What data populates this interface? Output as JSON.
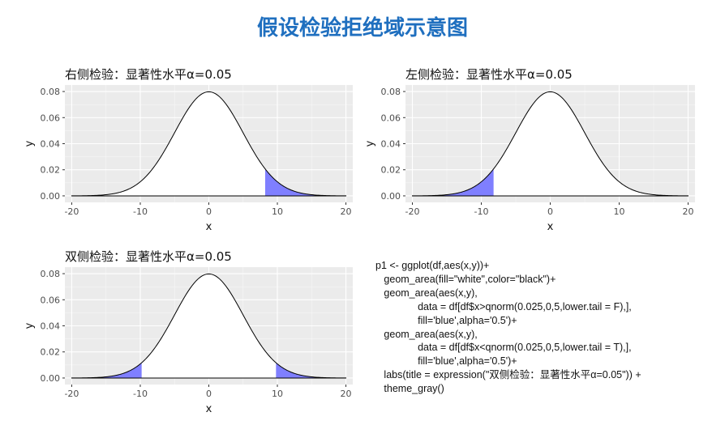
{
  "page": {
    "title": "假设检验拒绝域示意图"
  },
  "chart_data": [
    {
      "type": "area",
      "title": "右侧检验：显著性水平α=0.05",
      "xlabel": "x",
      "ylabel": "y",
      "xlim": [
        -21,
        21
      ],
      "ylim": [
        -0.005,
        0.085
      ],
      "x_ticks": [
        -20,
        -10,
        0,
        10,
        20
      ],
      "y_ticks": [
        0.0,
        0.02,
        0.04,
        0.06,
        0.08
      ],
      "y_tick_labels": [
        "0.00",
        "0.02",
        "0.04",
        "0.06",
        "0.08"
      ],
      "x_tick_labels": [
        "-20",
        "-10",
        "0",
        "10",
        "20"
      ],
      "curve": {
        "distribution": "normal",
        "mean": 0,
        "sd": 5,
        "x_range": [
          -20,
          20
        ],
        "fill": "white",
        "line": "black"
      },
      "shaded": [
        {
          "from": 8.22,
          "to": 20,
          "fill": "blue",
          "alpha": 0.5
        }
      ],
      "grid": true
    },
    {
      "type": "area",
      "title": "左侧检验：显著性水平α=0.05",
      "xlabel": "x",
      "ylabel": "y",
      "xlim": [
        -21,
        21
      ],
      "ylim": [
        -0.005,
        0.085
      ],
      "x_ticks": [
        -20,
        -10,
        0,
        10,
        20
      ],
      "y_ticks": [
        0.0,
        0.02,
        0.04,
        0.06,
        0.08
      ],
      "y_tick_labels": [
        "0.00",
        "0.02",
        "0.04",
        "0.06",
        "0.08"
      ],
      "x_tick_labels": [
        "-20",
        "-10",
        "0",
        "10",
        "20"
      ],
      "curve": {
        "distribution": "normal",
        "mean": 0,
        "sd": 5,
        "x_range": [
          -20,
          20
        ],
        "fill": "white",
        "line": "black"
      },
      "shaded": [
        {
          "from": -20,
          "to": -8.22,
          "fill": "blue",
          "alpha": 0.5
        }
      ],
      "grid": true
    },
    {
      "type": "area",
      "title": "双侧检验：显著性水平α=0.05",
      "xlabel": "x",
      "ylabel": "y",
      "xlim": [
        -21,
        21
      ],
      "ylim": [
        -0.005,
        0.085
      ],
      "x_ticks": [
        -20,
        -10,
        0,
        10,
        20
      ],
      "y_ticks": [
        0.0,
        0.02,
        0.04,
        0.06,
        0.08
      ],
      "y_tick_labels": [
        "0.00",
        "0.02",
        "0.04",
        "0.06",
        "0.08"
      ],
      "x_tick_labels": [
        "-20",
        "-10",
        "0",
        "10",
        "20"
      ],
      "curve": {
        "distribution": "normal",
        "mean": 0,
        "sd": 5,
        "x_range": [
          -20,
          20
        ],
        "fill": "white",
        "line": "black"
      },
      "shaded": [
        {
          "from": 9.8,
          "to": 20,
          "fill": "blue",
          "alpha": 0.5
        },
        {
          "from": -20,
          "to": -9.8,
          "fill": "blue",
          "alpha": 0.5
        }
      ],
      "grid": true
    }
  ],
  "code": {
    "lines": [
      "p1 <- ggplot(df,aes(x,y))+",
      "   geom_area(fill=\"white\",color=\"black\")+",
      "   geom_area(aes(x,y),",
      "               data = df[df$x>qnorm(0.025,0,5,lower.tail = F),],",
      "               fill='blue',alpha='0.5')+",
      "   geom_area(aes(x,y),",
      "               data = df[df$x<qnorm(0.025,0,5,lower.tail = T),],",
      "               fill='blue',alpha='0.5')+",
      "   labs(title = expression(\"双侧检验：显著性水平α=0.05\")) +",
      "   theme_gray()"
    ]
  },
  "colors": {
    "title": "#1F6FBF",
    "panel_bg": "#EBEBEB",
    "grid_major": "#FFFFFF",
    "shade": "#0000FF"
  }
}
